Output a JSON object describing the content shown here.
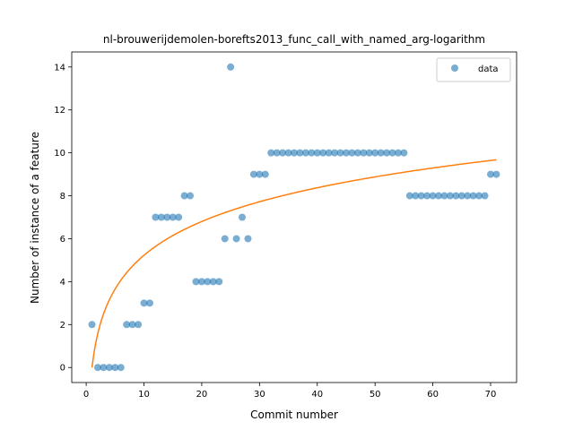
{
  "chart_data": {
    "type": "scatter",
    "title": "nl-brouwerijdemolen-borefts2013_func_call_with_named_arg-logarithm",
    "xlabel": "Commit number",
    "ylabel": "Number of instance of a feature",
    "xlim": [
      -2.5,
      74.5
    ],
    "ylim": [
      -0.7,
      14.7
    ],
    "xticks": [
      0,
      10,
      20,
      30,
      40,
      50,
      60,
      70
    ],
    "yticks": [
      0,
      2,
      4,
      6,
      8,
      10,
      12,
      14
    ],
    "grid": false,
    "legend_position": "top-right",
    "series": [
      {
        "name": "data",
        "kind": "scatter",
        "color": "#1f77b4",
        "x": [
          1,
          2,
          3,
          4,
          5,
          6,
          7,
          8,
          9,
          10,
          11,
          12,
          13,
          14,
          15,
          16,
          17,
          18,
          19,
          20,
          21,
          22,
          23,
          24,
          25,
          26,
          27,
          28,
          29,
          30,
          31,
          32,
          33,
          34,
          35,
          36,
          37,
          38,
          39,
          40,
          41,
          42,
          43,
          44,
          45,
          46,
          47,
          48,
          49,
          50,
          51,
          52,
          53,
          54,
          55,
          56,
          57,
          58,
          59,
          60,
          61,
          62,
          63,
          64,
          65,
          66,
          67,
          68,
          69,
          70,
          71
        ],
        "y": [
          2,
          0,
          0,
          0,
          0,
          0,
          2,
          2,
          2,
          3,
          3,
          7,
          7,
          7,
          7,
          7,
          8,
          8,
          4,
          4,
          4,
          4,
          4,
          6,
          14,
          6,
          7,
          6,
          9,
          9,
          9,
          10,
          10,
          10,
          10,
          10,
          10,
          10,
          10,
          10,
          10,
          10,
          10,
          10,
          10,
          10,
          10,
          10,
          10,
          10,
          10,
          10,
          10,
          10,
          10,
          8,
          8,
          8,
          8,
          8,
          8,
          8,
          8,
          8,
          8,
          8,
          8,
          8,
          8,
          9,
          9
        ]
      },
      {
        "name": "",
        "kind": "line",
        "color": "#ff7f0e",
        "model": "logarithmic",
        "a": 0.0,
        "b": 2.27,
        "x_range": [
          1,
          71
        ]
      }
    ]
  }
}
